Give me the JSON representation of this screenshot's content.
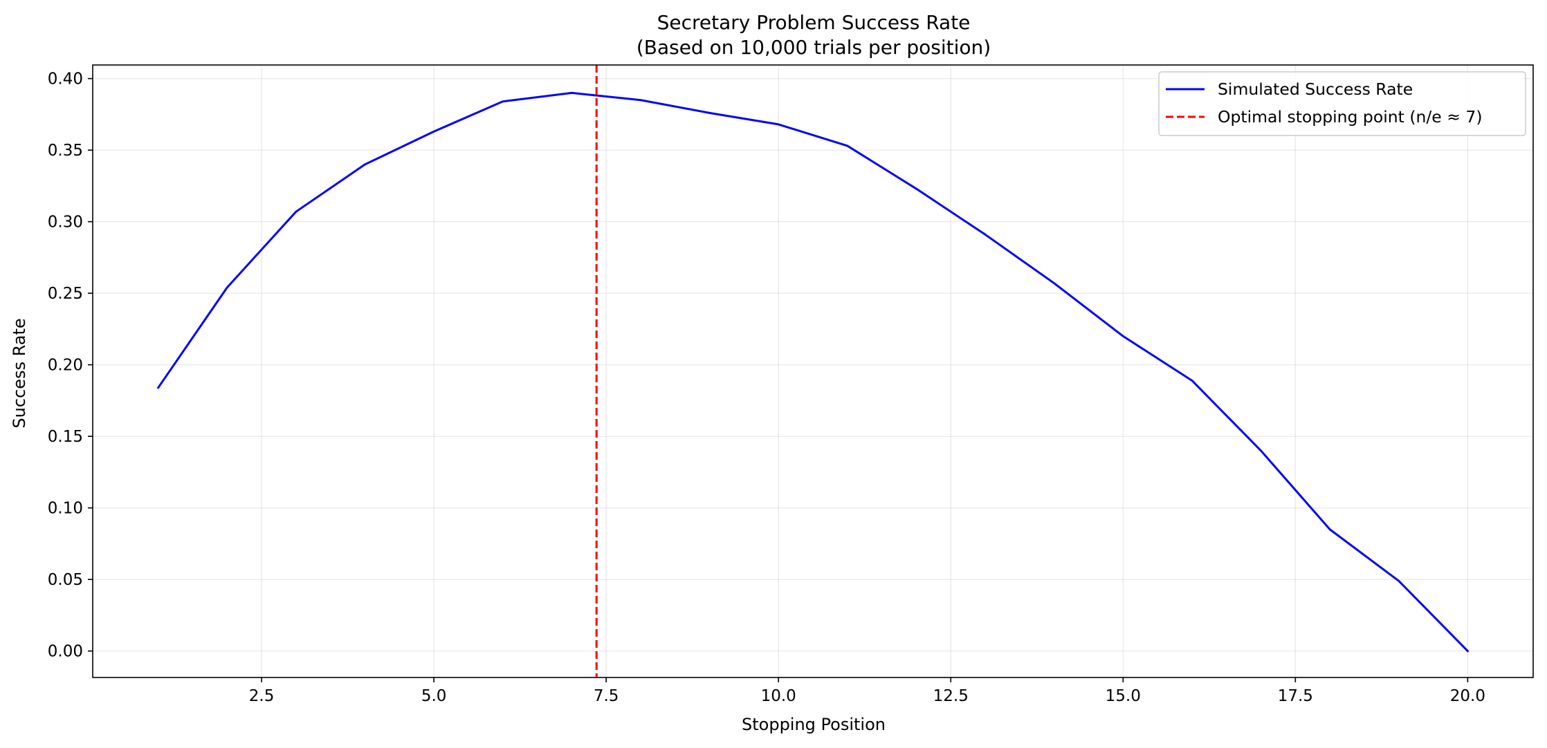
{
  "chart_data": {
    "type": "line",
    "title_line1": "Secretary Problem Success Rate",
    "title_line2": "(Based on 10,000 trials per position)",
    "xlabel": "Stopping Position",
    "ylabel": "Success Rate",
    "xlim": [
      0.05,
      20.95
    ],
    "ylim": [
      -0.0185,
      0.4095
    ],
    "xticks": [
      2.5,
      5.0,
      7.5,
      10.0,
      12.5,
      15.0,
      17.5,
      20.0
    ],
    "xtick_labels": [
      "2.5",
      "5.0",
      "7.5",
      "10.0",
      "12.5",
      "15.0",
      "17.5",
      "20.0"
    ],
    "yticks": [
      0.0,
      0.05,
      0.1,
      0.15,
      0.2,
      0.25,
      0.3,
      0.35,
      0.4
    ],
    "ytick_labels": [
      "0.00",
      "0.05",
      "0.10",
      "0.15",
      "0.20",
      "0.25",
      "0.30",
      "0.35",
      "0.40"
    ],
    "grid": true,
    "legend_position": "top-right",
    "series": [
      {
        "name": "Simulated Success Rate",
        "color": "#0000ff",
        "style": "solid",
        "x": [
          1,
          2,
          3,
          4,
          5,
          6,
          7,
          8,
          9,
          10,
          11,
          12,
          13,
          14,
          15,
          16,
          17,
          18,
          19,
          20
        ],
        "y": [
          0.184,
          0.254,
          0.307,
          0.34,
          0.363,
          0.384,
          0.39,
          0.385,
          0.376,
          0.368,
          0.353,
          0.323,
          0.291,
          0.257,
          0.22,
          0.189,
          0.14,
          0.085,
          0.049,
          0.0
        ]
      }
    ],
    "vline": {
      "name": "Optimal stopping point (n/e ≈ 7)",
      "x": 7.36,
      "color": "#ff0000",
      "style": "dashed"
    }
  }
}
